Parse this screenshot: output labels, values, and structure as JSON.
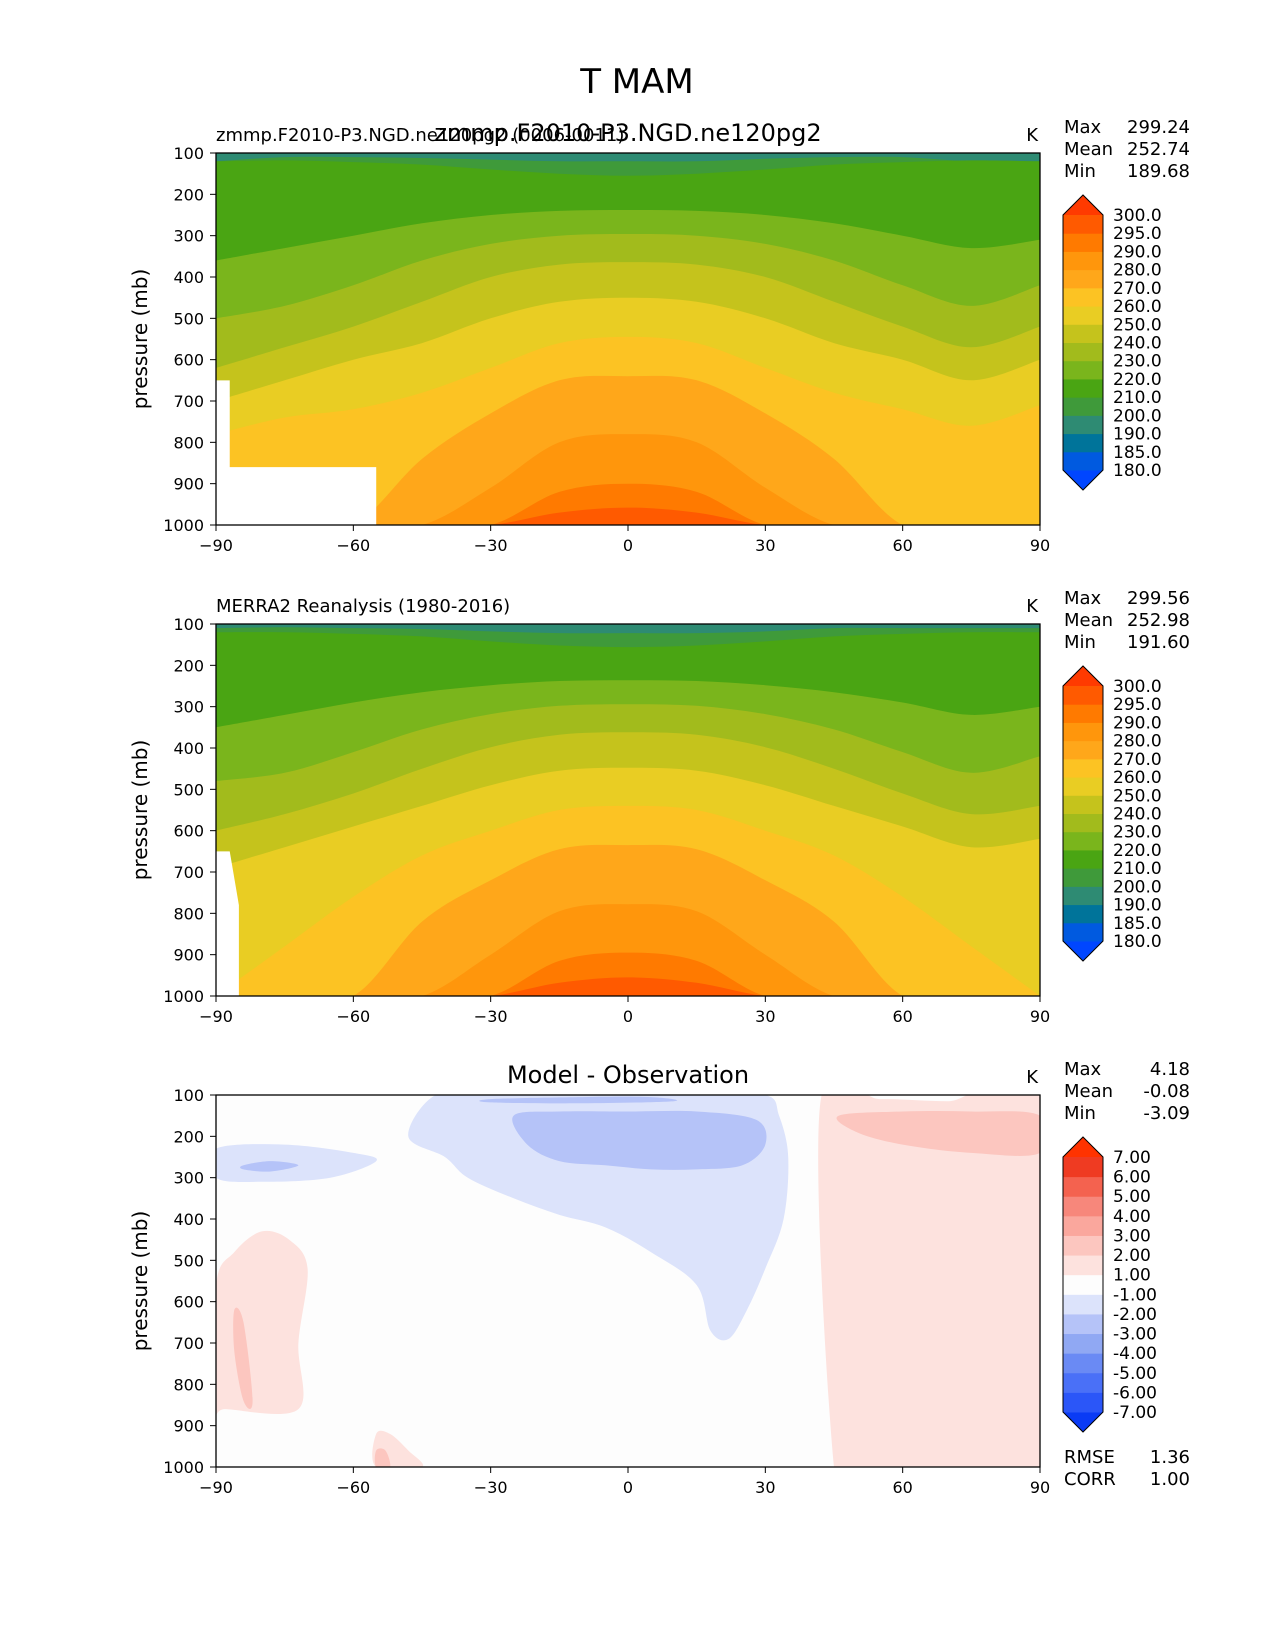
{
  "figure_title": "T MAM",
  "colors": {
    "absolute_levels": [
      "#0046ff",
      "#005ae0",
      "#00749a",
      "#2e8b73",
      "#3f9a3a",
      "#4aa513",
      "#7ab51c",
      "#a2bb1c",
      "#c5c31c",
      "#e9cd23",
      "#fcc323",
      "#ffa71a",
      "#ff960c",
      "#ff7a00",
      "#ff5a00",
      "#ff3a00"
    ],
    "difference_levels": [
      "#0a3bf5",
      "#2b56f8",
      "#4a70f7",
      "#6a8af4",
      "#90a8f3",
      "#b5c3f8",
      "#dce3fb",
      "#fdfdfd",
      "#fde2de",
      "#fcc6bf",
      "#faa79d",
      "#f7877b",
      "#f4624f",
      "#ef3b22",
      "#ff3300"
    ]
  },
  "chart_data": [
    {
      "type": "contour",
      "panel": "top",
      "left_title": "zmmp.F2010-P3.NGD.ne120pg2 (0006-0011)",
      "center_title": "zmmp.F2010-P3.NGD.ne120pg2",
      "units": "K",
      "stats": {
        "max_label": "Max",
        "max": "299.24",
        "mean_label": "Mean",
        "mean": "252.74",
        "min_label": "Min",
        "min": "189.68"
      },
      "ylabel": "pressure (mb)",
      "xlim": [
        -90,
        90
      ],
      "ylim": [
        1000,
        100
      ],
      "x_ticks": [
        "−90",
        "−60",
        "−30",
        "0",
        "30",
        "60",
        "90"
      ],
      "y_ticks": [
        "100",
        "200",
        "300",
        "400",
        "500",
        "600",
        "700",
        "800",
        "900",
        "1000"
      ],
      "colorbar_ticks": [
        "300.0",
        "295.0",
        "290.0",
        "280.0",
        "270.0",
        "260.0",
        "250.0",
        "240.0",
        "230.0",
        "220.0",
        "210.0",
        "200.0",
        "190.0",
        "185.0",
        "180.0"
      ],
      "contour_bands": [
        {
          "level": 200,
          "y": [
            120,
            110,
            110,
            112,
            116,
            120,
            120,
            120,
            114,
            110,
            110,
            120,
            120
          ]
        },
        {
          "level": 210,
          "y": [
            120,
            118,
            122,
            128,
            140,
            150,
            155,
            150,
            140,
            128,
            122,
            118,
            120
          ]
        },
        {
          "level": 220,
          "y": [
            360,
            330,
            300,
            270,
            250,
            240,
            238,
            240,
            250,
            270,
            300,
            330,
            310
          ]
        },
        {
          "level": 230,
          "y": [
            500,
            470,
            420,
            360,
            320,
            300,
            296,
            300,
            320,
            360,
            420,
            470,
            420
          ]
        },
        {
          "level": 240,
          "y": [
            620,
            570,
            520,
            460,
            400,
            370,
            364,
            370,
            400,
            460,
            520,
            570,
            520
          ]
        },
        {
          "level": 250,
          "y": [
            700,
            650,
            600,
            560,
            500,
            460,
            450,
            460,
            500,
            560,
            600,
            650,
            600
          ]
        },
        {
          "level": 260,
          "y": [
            780,
            740,
            720,
            680,
            620,
            560,
            545,
            560,
            620,
            680,
            720,
            760,
            710
          ]
        },
        {
          "level": 270,
          "y": [
            1000,
            1000,
            1000,
            840,
            730,
            650,
            640,
            650,
            730,
            840,
            1000,
            1000,
            1000
          ]
        },
        {
          "level": 280,
          "y": [
            1000,
            1000,
            1000,
            1000,
            910,
            800,
            780,
            800,
            910,
            1000,
            1000,
            1000,
            1000
          ]
        },
        {
          "level": 290,
          "y": [
            1000,
            1000,
            1000,
            1000,
            1000,
            920,
            900,
            920,
            1000,
            1000,
            1000,
            1000,
            1000
          ]
        },
        {
          "level": 295,
          "y": [
            1000,
            1000,
            1000,
            1000,
            1000,
            970,
            958,
            970,
            1000,
            1000,
            1000,
            1000,
            1000
          ]
        }
      ],
      "contour_x": [
        -90,
        -75,
        -60,
        -45,
        -30,
        -15,
        0,
        15,
        30,
        45,
        60,
        75,
        90
      ],
      "missing_regions": [
        {
          "x": [
            -90,
            -87,
            -87,
            -55,
            -55,
            -90
          ],
          "y": [
            650,
            650,
            860,
            860,
            1000,
            1000
          ]
        }
      ]
    },
    {
      "type": "contour",
      "panel": "middle",
      "left_title": "MERRA2 Reanalysis (1980-2016)",
      "units": "K",
      "stats": {
        "max_label": "Max",
        "max": "299.56",
        "mean_label": "Mean",
        "mean": "252.98",
        "min_label": "Min",
        "min": "191.60"
      },
      "ylabel": "pressure (mb)",
      "xlim": [
        -90,
        90
      ],
      "ylim": [
        1000,
        100
      ],
      "x_ticks": [
        "−90",
        "−60",
        "−30",
        "0",
        "30",
        "60",
        "90"
      ],
      "y_ticks": [
        "100",
        "200",
        "300",
        "400",
        "500",
        "600",
        "700",
        "800",
        "900",
        "1000"
      ],
      "colorbar_ticks": [
        "300.0",
        "295.0",
        "290.0",
        "280.0",
        "270.0",
        "260.0",
        "250.0",
        "240.0",
        "230.0",
        "220.0",
        "210.0",
        "200.0",
        "190.0",
        "185.0",
        "180.0"
      ],
      "contour_bands": [
        {
          "level": 200,
          "y": [
            110,
            108,
            110,
            112,
            118,
            122,
            122,
            122,
            118,
            110,
            110,
            110,
            110
          ]
        },
        {
          "level": 210,
          "y": [
            120,
            120,
            124,
            130,
            142,
            152,
            156,
            152,
            142,
            130,
            124,
            120,
            120
          ]
        },
        {
          "level": 220,
          "y": [
            350,
            320,
            290,
            265,
            248,
            238,
            236,
            238,
            248,
            265,
            290,
            320,
            300
          ]
        },
        {
          "level": 230,
          "y": [
            480,
            460,
            410,
            355,
            318,
            298,
            294,
            298,
            318,
            355,
            410,
            460,
            420
          ]
        },
        {
          "level": 240,
          "y": [
            600,
            560,
            510,
            450,
            398,
            368,
            362,
            368,
            398,
            450,
            510,
            560,
            540
          ]
        },
        {
          "level": 250,
          "y": [
            690,
            640,
            590,
            540,
            490,
            455,
            448,
            455,
            490,
            540,
            590,
            640,
            620
          ]
        },
        {
          "level": 260,
          "y": [
            1000,
            880,
            760,
            660,
            600,
            550,
            540,
            550,
            600,
            660,
            760,
            880,
            1000
          ]
        },
        {
          "level": 270,
          "y": [
            1000,
            1000,
            1000,
            820,
            720,
            645,
            635,
            645,
            720,
            820,
            1000,
            1000,
            1000
          ]
        },
        {
          "level": 280,
          "y": [
            1000,
            1000,
            1000,
            1000,
            900,
            795,
            778,
            795,
            900,
            1000,
            1000,
            1000,
            1000
          ]
        },
        {
          "level": 290,
          "y": [
            1000,
            1000,
            1000,
            1000,
            1000,
            915,
            895,
            915,
            1000,
            1000,
            1000,
            1000,
            1000
          ]
        },
        {
          "level": 295,
          "y": [
            1000,
            1000,
            1000,
            1000,
            1000,
            968,
            955,
            968,
            1000,
            1000,
            1000,
            1000,
            1000
          ]
        }
      ],
      "contour_x": [
        -90,
        -75,
        -60,
        -45,
        -30,
        -15,
        0,
        15,
        30,
        45,
        60,
        75,
        90
      ],
      "missing_regions": [
        {
          "x": [
            -90,
            -87,
            -85,
            -85,
            -90
          ],
          "y": [
            650,
            650,
            780,
            1000,
            1000
          ]
        }
      ]
    },
    {
      "type": "contour",
      "panel": "bottom",
      "center_title": "Model - Observation",
      "units": "K",
      "stats": {
        "max_label": "Max",
        "max": "4.18",
        "mean_label": "Mean",
        "mean": "-0.08",
        "min_label": "Min",
        "min": "-3.09"
      },
      "extra_stats": {
        "rmse_label": "RMSE",
        "rmse": "1.36",
        "corr_label": "CORR",
        "corr": "1.00"
      },
      "ylabel": "pressure (mb)",
      "xlim": [
        -90,
        90
      ],
      "ylim": [
        1000,
        100
      ],
      "x_ticks": [
        "−90",
        "−60",
        "−30",
        "0",
        "30",
        "60",
        "90"
      ],
      "y_ticks": [
        "100",
        "200",
        "300",
        "400",
        "500",
        "600",
        "700",
        "800",
        "900",
        "1000"
      ],
      "colorbar_ticks": [
        "7.00",
        "6.00",
        "5.00",
        "4.00",
        "3.00",
        "2.00",
        "1.00",
        "-1.00",
        "-2.00",
        "-3.00",
        "-4.00",
        "-5.00",
        "-6.00",
        "-7.00"
      ],
      "regions": [
        {
          "value": -1.5,
          "x": [
            -90,
            -75,
            -60,
            -55,
            -65,
            -80,
            -90
          ],
          "y": [
            230,
            220,
            240,
            260,
            300,
            310,
            300
          ]
        },
        {
          "value": -2.5,
          "x": [
            -84,
            -78,
            -72,
            -78,
            -84
          ],
          "y": [
            270,
            260,
            270,
            285,
            280
          ]
        },
        {
          "value": -1.5,
          "x": [
            -42,
            -30,
            -15,
            0,
            15,
            30,
            33,
            35,
            34,
            30,
            26,
            22,
            18,
            15,
            5,
            -5,
            -15,
            -25,
            -35,
            -40,
            -48
          ],
          "y": [
            100,
            100,
            100,
            100,
            100,
            100,
            150,
            250,
            400,
            520,
            620,
            690,
            670,
            560,
            480,
            420,
            390,
            350,
            300,
            250,
            200
          ]
        },
        {
          "value": -2.5,
          "x": [
            -25,
            -15,
            0,
            15,
            28,
            30,
            25,
            15,
            5,
            -5,
            -15,
            -22
          ],
          "y": [
            150,
            140,
            140,
            140,
            160,
            220,
            270,
            280,
            280,
            270,
            260,
            220
          ]
        },
        {
          "value": -2.5,
          "x": [
            -30,
            -10,
            5,
            10,
            -10,
            -30
          ],
          "y": [
            110,
            105,
            105,
            115,
            120,
            118
          ]
        },
        {
          "value": 1.5,
          "x": [
            -90,
            -86,
            -80,
            -74,
            -70,
            -72,
            -72,
            -88,
            -90
          ],
          "y": [
            560,
            480,
            430,
            450,
            520,
            700,
            860,
            860,
            860
          ]
        },
        {
          "value": 2.5,
          "x": [
            -86,
            -84,
            -82,
            -84,
            -86
          ],
          "y": [
            620,
            650,
            840,
            840,
            720
          ]
        },
        {
          "value": 1.5,
          "x": [
            42,
            55,
            70,
            90,
            90,
            80,
            70,
            65,
            68,
            72,
            80,
            90,
            90,
            68,
            60,
            50,
            45
          ],
          "y": [
            120,
            110,
            115,
            110,
            1000,
            1000,
            1000,
            820,
            600,
            420,
            300,
            270,
            1000,
            1000,
            1000,
            1000,
            1000
          ]
        },
        {
          "value": 2.5,
          "x": [
            46,
            60,
            75,
            90,
            90,
            75,
            60,
            50
          ],
          "y": [
            150,
            140,
            140,
            150,
            240,
            240,
            220,
            190
          ]
        },
        {
          "value": 1.5,
          "x": [
            -55,
            -52,
            -48,
            -45,
            -55
          ],
          "y": [
            920,
            920,
            960,
            1000,
            1000
          ]
        },
        {
          "value": 2.5,
          "x": [
            -55,
            -53,
            -52,
            -55
          ],
          "y": [
            960,
            960,
            1000,
            1000
          ]
        },
        {
          "value": 1.5,
          "x": [
            50,
            56,
            62,
            68,
            70,
            50
          ],
          "y": [
            960,
            940,
            950,
            930,
            1000,
            1000
          ]
        }
      ]
    }
  ]
}
